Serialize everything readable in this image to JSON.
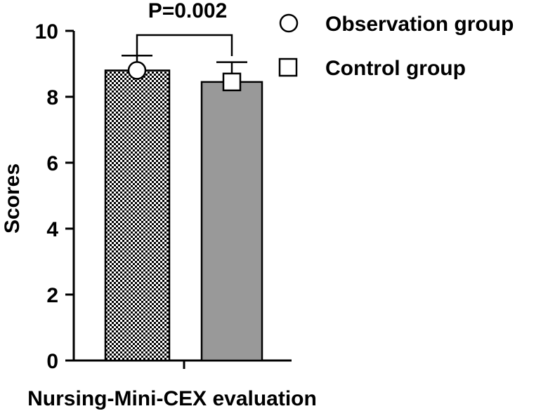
{
  "chart_data": {
    "type": "bar",
    "title": "",
    "xlabel": "Nursing-Mini-CEX evaluation",
    "ylabel": "Scores",
    "ylim": [
      0,
      10
    ],
    "yticks": [
      "0",
      "2",
      "4",
      "6",
      "8",
      "10"
    ],
    "grid": false,
    "legend_position": "top-right",
    "series": [
      {
        "name": "Observation group",
        "value": 8.8,
        "error": 0.45,
        "marker": "circle",
        "fill": "checkered",
        "color": "#000000"
      },
      {
        "name": "Control group",
        "value": 8.45,
        "error": 0.6,
        "marker": "square",
        "fill": "solid",
        "color": "#999999"
      }
    ],
    "annotation": "P=0.002"
  }
}
